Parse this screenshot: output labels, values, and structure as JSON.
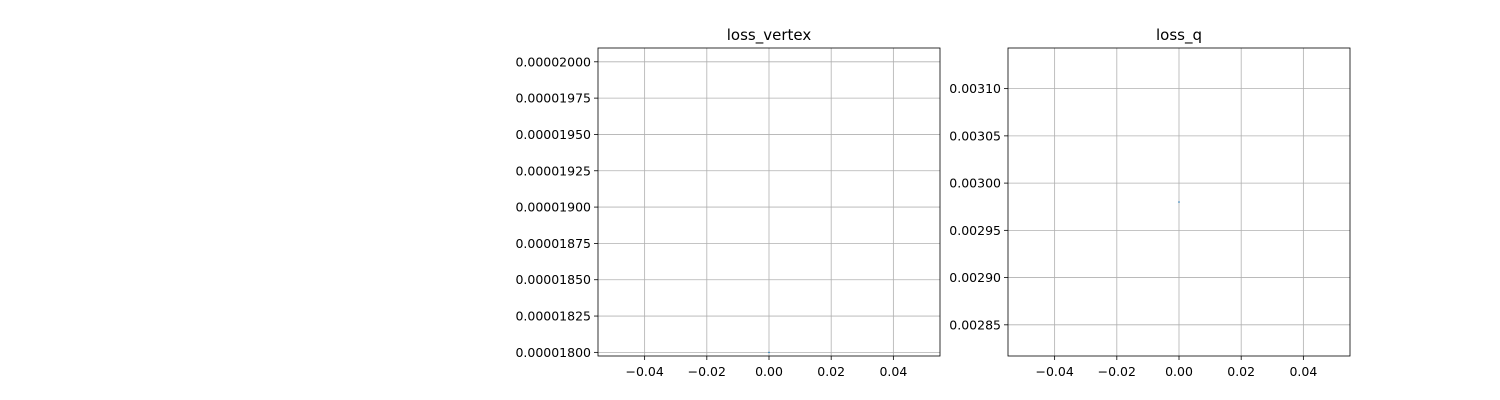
{
  "chart_data": [
    {
      "type": "line",
      "title": "loss_vertex",
      "xlabel": "",
      "ylabel": "",
      "xlim": [
        -0.055,
        0.055
      ],
      "ylim": [
        1.7975e-05,
        2.0095e-05
      ],
      "x_ticks": [
        -0.04,
        -0.02,
        0.0,
        0.02,
        0.04
      ],
      "x_tick_labels": [
        "−0.04",
        "−0.02",
        "0.00",
        "0.02",
        "0.04"
      ],
      "y_ticks": [
        1.8e-05,
        1.825e-05,
        1.85e-05,
        1.875e-05,
        1.9e-05,
        1.925e-05,
        1.95e-05,
        1.975e-05,
        2e-05
      ],
      "y_tick_labels": [
        "0.00001800",
        "0.00001825",
        "0.00001850",
        "0.00001875",
        "0.00001900",
        "0.00001925",
        "0.00001950",
        "0.00001975",
        "0.00002000"
      ],
      "grid": true,
      "series": [
        {
          "color": "#1f77b4",
          "x": [
            0
          ],
          "y": [
            1.8e-05
          ]
        }
      ]
    },
    {
      "type": "line",
      "title": "loss_q",
      "xlabel": "",
      "ylabel": "",
      "xlim": [
        -0.055,
        0.055
      ],
      "ylim": [
        0.002817,
        0.003143
      ],
      "x_ticks": [
        -0.04,
        -0.02,
        0.0,
        0.02,
        0.04
      ],
      "x_tick_labels": [
        "−0.04",
        "−0.02",
        "0.00",
        "0.02",
        "0.04"
      ],
      "y_ticks": [
        0.00285,
        0.0029,
        0.00295,
        0.003,
        0.00305,
        0.0031
      ],
      "y_tick_labels": [
        "0.00285",
        "0.00290",
        "0.00295",
        "0.00300",
        "0.00305",
        "0.00310"
      ],
      "grid": true,
      "series": [
        {
          "color": "#1f77b4",
          "x": [
            0
          ],
          "y": [
            0.00298
          ]
        }
      ]
    }
  ]
}
